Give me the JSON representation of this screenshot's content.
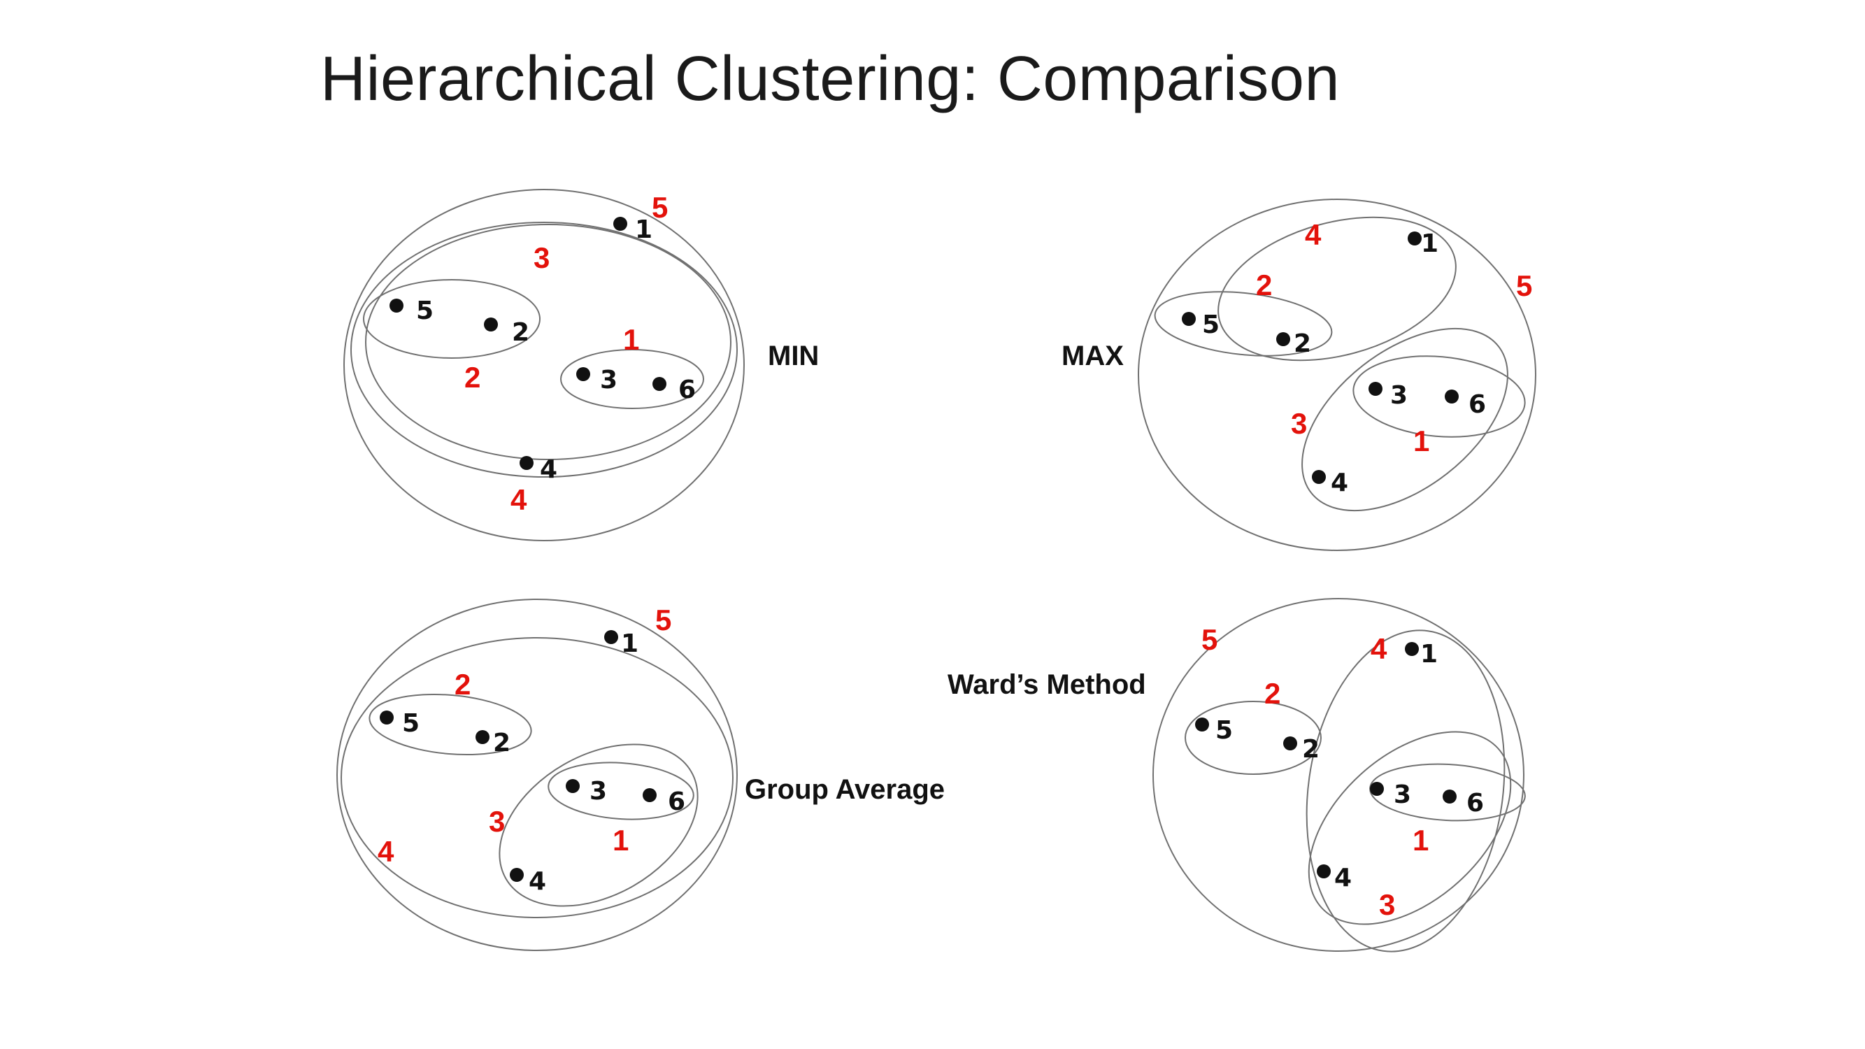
{
  "title": "Hierarchical Clustering: Comparison",
  "colors": {
    "order_label": "#e3120b",
    "point": "#111111",
    "outline": "#707070"
  },
  "panels": {
    "min": {
      "method": "MIN",
      "points": [
        "1",
        "5",
        "2",
        "3",
        "6",
        "4"
      ],
      "merge_order": [
        "5",
        "3",
        "1",
        "2",
        "4"
      ]
    },
    "max": {
      "method": "MAX",
      "points": [
        "1",
        "5",
        "2",
        "3",
        "6",
        "4"
      ],
      "merge_order": [
        "4",
        "5",
        "2",
        "3",
        "1"
      ]
    },
    "group_average": {
      "method": "Group Average",
      "points": [
        "1",
        "5",
        "2",
        "3",
        "6",
        "4"
      ],
      "merge_order": [
        "5",
        "2",
        "3",
        "1",
        "4"
      ]
    },
    "ward": {
      "method": "Ward’s Method",
      "points": [
        "1",
        "5",
        "2",
        "3",
        "6",
        "4"
      ],
      "merge_order": [
        "5",
        "4",
        "2",
        "1",
        "3"
      ]
    }
  }
}
